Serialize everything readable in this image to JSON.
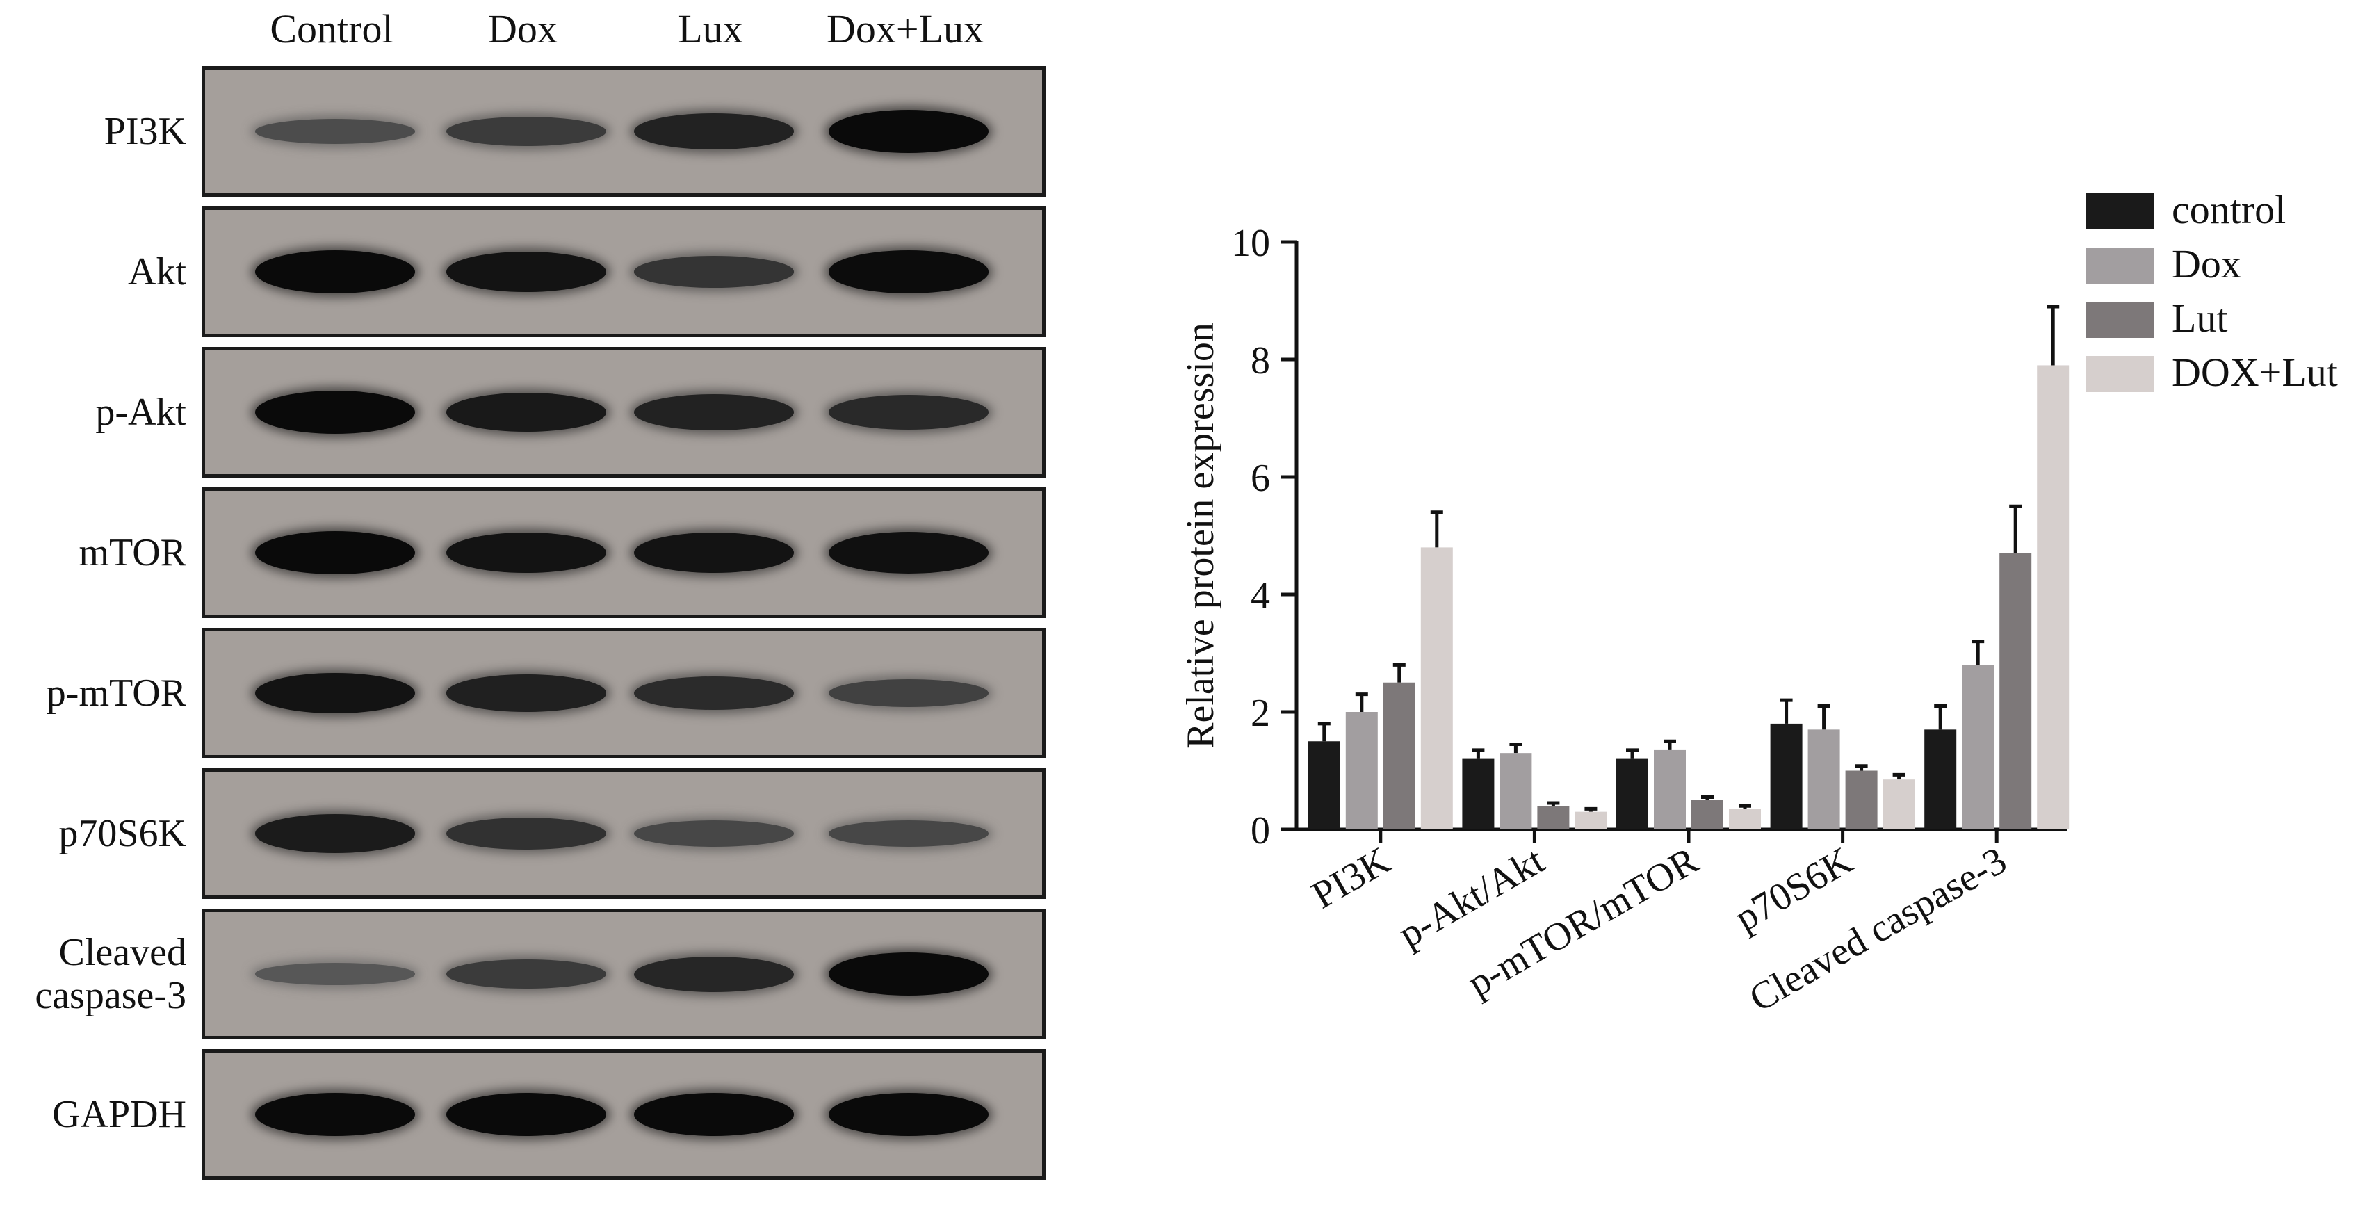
{
  "blot": {
    "lanes": [
      "Control",
      "Dox",
      "Lux",
      "Dox+Lux"
    ],
    "rows": [
      {
        "label_lines": [
          "PI3K"
        ],
        "intensity": [
          0.4,
          0.55,
          0.78,
          1.0
        ]
      },
      {
        "label_lines": [
          "Akt"
        ],
        "intensity": [
          1.0,
          0.92,
          0.62,
          0.98
        ]
      },
      {
        "label_lines": [
          "p-Akt"
        ],
        "intensity": [
          1.0,
          0.86,
          0.78,
          0.72
        ]
      },
      {
        "label_lines": [
          "mTOR"
        ],
        "intensity": [
          1.0,
          0.92,
          0.92,
          0.95
        ]
      },
      {
        "label_lines": [
          "p-mTOR"
        ],
        "intensity": [
          0.92,
          0.8,
          0.7,
          0.5
        ]
      },
      {
        "label_lines": [
          "p70S6K"
        ],
        "intensity": [
          0.85,
          0.65,
          0.45,
          0.45
        ]
      },
      {
        "label_lines": [
          "Cleaved",
          "caspase-3"
        ],
        "intensity": [
          0.3,
          0.55,
          0.75,
          1.0
        ]
      },
      {
        "label_lines": [
          "GAPDH"
        ],
        "intensity": [
          1.0,
          1.0,
          1.0,
          1.0
        ]
      }
    ]
  },
  "chart_data": {
    "type": "bar",
    "categories": [
      "PI3K",
      "p-Akt/Akt",
      "p-mTOR/mTOR",
      "p70S6K",
      "Cleaved caspase-3"
    ],
    "series": [
      {
        "name": "control",
        "color": "#1a1a1a",
        "values": [
          1.5,
          1.2,
          1.2,
          1.8,
          1.7
        ],
        "errors": [
          0.3,
          0.15,
          0.15,
          0.4,
          0.4
        ]
      },
      {
        "name": "Dox",
        "color": "#a29ea0",
        "values": [
          2.0,
          1.3,
          1.35,
          1.7,
          2.8
        ],
        "errors": [
          0.3,
          0.15,
          0.15,
          0.4,
          0.4
        ]
      },
      {
        "name": "Lut",
        "color": "#7d7879",
        "values": [
          2.5,
          0.4,
          0.5,
          1.0,
          4.7
        ],
        "errors": [
          0.3,
          0.05,
          0.05,
          0.08,
          0.8
        ]
      },
      {
        "name": "DOX+Lut",
        "color": "#d6cfcd",
        "values": [
          4.8,
          0.3,
          0.35,
          0.85,
          7.9
        ],
        "errors": [
          0.6,
          0.05,
          0.05,
          0.08,
          1.0
        ]
      }
    ],
    "ylabel": "Relative protein expression",
    "xlabel": "",
    "ylim": [
      0,
      10
    ],
    "yticks": [
      0,
      2,
      4,
      6,
      8,
      10
    ],
    "legend_position": "top-right"
  }
}
